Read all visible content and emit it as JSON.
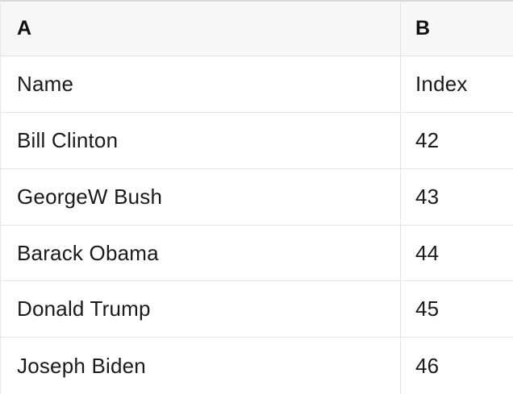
{
  "table": {
    "column_headers": {
      "a": "A",
      "b": "B"
    },
    "rows": [
      {
        "a": "Name",
        "b": "Index"
      },
      {
        "a": "Bill Clinton",
        "b": "42"
      },
      {
        "a": "GeorgeW Bush",
        "b": "43"
      },
      {
        "a": "Barack Obama",
        "b": "44"
      },
      {
        "a": "Donald Trump",
        "b": "45"
      },
      {
        "a": "Joseph Biden",
        "b": "46"
      }
    ],
    "colors": {
      "header_background": "#f7f7f7",
      "row_background": "#ffffff",
      "grid_line": "#e3e3e3",
      "top_border": "#d8d8d8",
      "text": "#1a1a1a"
    }
  }
}
